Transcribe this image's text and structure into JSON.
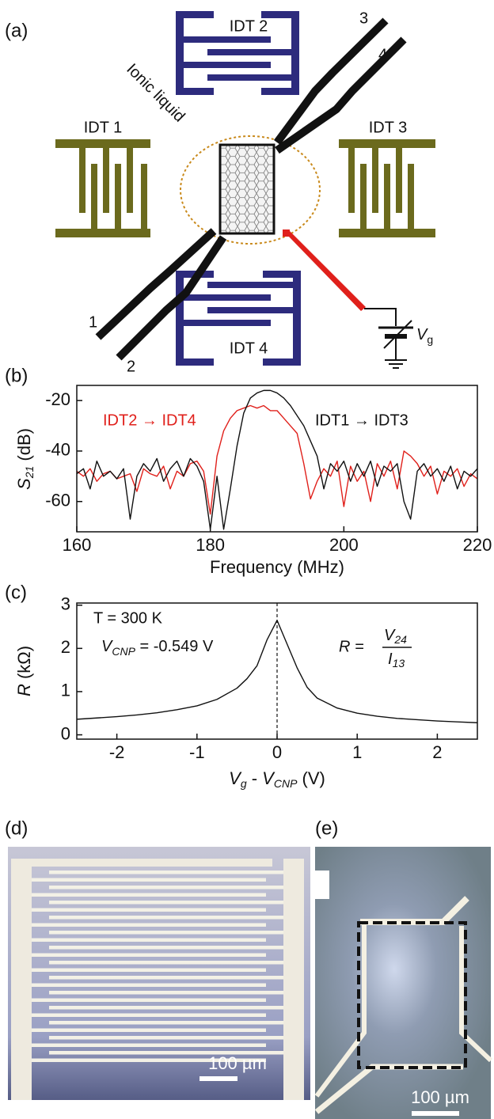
{
  "panel_a": {
    "label": "(a)",
    "idt2": "IDT 2",
    "idt1": "IDT 1",
    "idt3": "IDT 3",
    "idt4": "IDT 4",
    "ionic": "Ionic liquid",
    "lead1": "1",
    "lead2": "2",
    "lead3": "3",
    "lead4": "4",
    "gate": {
      "symbol": "V",
      "subscript": "g"
    }
  },
  "chart_data": [
    {
      "type": "line",
      "panel_label": "(b)",
      "x_label": "Frequency (MHz)",
      "y_label": {
        "symbol": "S",
        "subscript": "21",
        "unit": " (dB)"
      },
      "xlim": [
        160,
        220
      ],
      "xticks": [
        160,
        180,
        200,
        220
      ],
      "ylim": [
        -72,
        -14
      ],
      "yticks": [
        -20,
        -40,
        -60
      ],
      "x": [
        160,
        161,
        162,
        163,
        164,
        165,
        166,
        167,
        168,
        169,
        170,
        171,
        172,
        173,
        174,
        175,
        176,
        177,
        178,
        179,
        180,
        181,
        182,
        183,
        184,
        185,
        186,
        187,
        188,
        189,
        190,
        191,
        192,
        193,
        194,
        195,
        196,
        197,
        198,
        199,
        200,
        201,
        202,
        203,
        204,
        205,
        206,
        207,
        208,
        209,
        210,
        211,
        212,
        213,
        214,
        215,
        216,
        217,
        218,
        219,
        220
      ],
      "series": [
        {
          "name": "IDT2 → IDT4",
          "color": "#e0201b",
          "values": [
            -48,
            -50,
            -47,
            -52,
            -49,
            -48,
            -51,
            -50,
            -49,
            -56,
            -47,
            -49,
            -50,
            -46,
            -55,
            -48,
            -50,
            -45,
            -44,
            -48,
            -65,
            -42,
            -32,
            -27,
            -24,
            -23,
            -22,
            -23,
            -22,
            -24,
            -24,
            -27,
            -30,
            -33,
            -45,
            -59,
            -52,
            -47,
            -50,
            -44,
            -62,
            -46,
            -52,
            -48,
            -60,
            -45,
            -50,
            -44,
            -55,
            -40,
            -42,
            -45,
            -50,
            -46,
            -57,
            -48,
            -50,
            -47,
            -54,
            -49,
            -51
          ]
        },
        {
          "name": "IDT1 → IDT3",
          "color": "#111111",
          "values": [
            -49,
            -47,
            -55,
            -44,
            -50,
            -48,
            -51,
            -47,
            -67,
            -50,
            -45,
            -48,
            -43,
            -52,
            -47,
            -44,
            -50,
            -43,
            -46,
            -52,
            -71,
            -50,
            -71,
            -55,
            -38,
            -25,
            -19,
            -17,
            -16,
            -16,
            -17,
            -19,
            -22,
            -26,
            -30,
            -36,
            -42,
            -55,
            -45,
            -48,
            -44,
            -52,
            -45,
            -50,
            -44,
            -54,
            -46,
            -48,
            -45,
            -60,
            -67,
            -48,
            -45,
            -50,
            -47,
            -52,
            -46,
            -55,
            -48,
            -50,
            -47
          ]
        }
      ]
    },
    {
      "type": "line",
      "panel_label": "(c)",
      "x_label": {
        "v": "V",
        "v_sub": "g",
        "minus": " - ",
        "c": "V",
        "c_sub": "CNP",
        "unit": " (V)"
      },
      "y_label": {
        "symbol": "R",
        "unit": " (kΩ)"
      },
      "xlim": [
        -2.5,
        2.5
      ],
      "xticks": [
        -2,
        -1,
        0,
        1,
        2
      ],
      "ylim": [
        -0.1,
        3.05
      ],
      "yticks": [
        0,
        1,
        2,
        3
      ],
      "marker_x": 0,
      "annotations": {
        "temperature": "T = 300 K",
        "vcnp": {
          "symbol": "V",
          "subscript": "CNP",
          "text": " = -0.549 V"
        },
        "formula": {
          "lhs": "R = ",
          "num": "V",
          "num_sub": "24",
          "den": "I",
          "den_sub": "13"
        }
      },
      "x": [
        -2.5,
        -2.25,
        -2,
        -1.75,
        -1.5,
        -1.25,
        -1,
        -0.75,
        -0.5,
        -0.375,
        -0.25,
        -0.125,
        0,
        0.125,
        0.25,
        0.375,
        0.5,
        0.75,
        1,
        1.25,
        1.5,
        1.75,
        2,
        2.25,
        2.5
      ],
      "series": [
        {
          "color": "#111111",
          "values": [
            0.36,
            0.39,
            0.42,
            0.46,
            0.51,
            0.58,
            0.67,
            0.82,
            1.08,
            1.3,
            1.6,
            2.2,
            2.65,
            2.1,
            1.55,
            1.1,
            0.85,
            0.62,
            0.5,
            0.43,
            0.38,
            0.35,
            0.32,
            0.3,
            0.28
          ]
        }
      ]
    }
  ],
  "panel_d": {
    "label": "(d)",
    "scale_bar": "100 µm"
  },
  "panel_e": {
    "label": "(e)",
    "scale_bar": "100 µm"
  }
}
